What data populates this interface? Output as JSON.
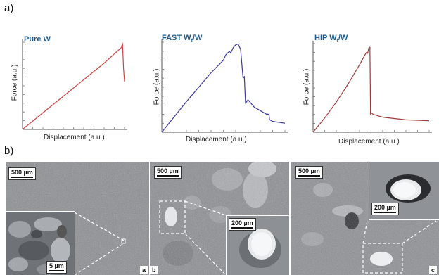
{
  "figure": {
    "panel_a_label": "a)",
    "panel_b_label": "b)"
  },
  "chart_data": [
    {
      "type": "line",
      "title": "Pure W",
      "xlabel": "Displacement (a.u.)",
      "ylabel": "Force (a.u.)",
      "xlim": [
        0,
        1
      ],
      "ylim": [
        0,
        1
      ],
      "x": [
        0,
        0.2,
        0.4,
        0.6,
        0.8,
        0.97,
        0.98,
        0.99,
        1.0
      ],
      "series": [
        {
          "values": [
            0,
            0.19,
            0.38,
            0.57,
            0.76,
            0.94,
            0.99,
            0.7,
            0.55
          ]
        }
      ]
    },
    {
      "type": "line",
      "title": "FAST W",
      "title_sub": "f",
      "title_suffix": "/W",
      "xlabel": "Displacement (a.u.)",
      "ylabel": "Force (a.u.)",
      "xlim": [
        0,
        1
      ],
      "ylim": [
        0,
        1
      ],
      "x": [
        0,
        0.1,
        0.2,
        0.3,
        0.4,
        0.5,
        0.52,
        0.55,
        0.56,
        0.58,
        0.6,
        0.62,
        0.64,
        0.66,
        0.67,
        0.68,
        0.7,
        0.75,
        0.8,
        0.85,
        0.87,
        0.875,
        0.9,
        1.0
      ],
      "series": [
        {
          "values": [
            0,
            0.17,
            0.34,
            0.5,
            0.66,
            0.8,
            0.86,
            0.9,
            0.88,
            0.94,
            0.97,
            0.98,
            0.92,
            0.6,
            0.62,
            0.32,
            0.36,
            0.28,
            0.24,
            0.2,
            0.2,
            0.14,
            0.12,
            0.1
          ]
        }
      ]
    },
    {
      "type": "line",
      "title": "HIP W",
      "title_sub": "f",
      "title_suffix": "/W",
      "xlabel": "Displacement (a.u.)",
      "ylabel": "Force (a.u.)",
      "xlim": [
        0,
        1
      ],
      "ylim": [
        0,
        1
      ],
      "x": [
        0,
        0.1,
        0.2,
        0.3,
        0.4,
        0.45,
        0.46,
        0.47,
        0.48,
        0.49,
        0.495,
        0.5,
        0.52,
        0.6,
        0.8,
        1.0
      ],
      "series": [
        {
          "values": [
            0,
            0.16,
            0.34,
            0.54,
            0.76,
            0.88,
            0.9,
            0.89,
            0.95,
            0.96,
            0.2,
            0.22,
            0.2,
            0.17,
            0.14,
            0.13
          ]
        }
      ]
    }
  ],
  "sem_images": [
    {
      "scale_main": "500 µm",
      "scale_inset": "5 µm",
      "tag": "a"
    },
    {
      "scale_main": "500 µm",
      "scale_inset": "200 µm",
      "tag": "b"
    },
    {
      "scale_main": "500 µm",
      "scale_inset": "200 µm",
      "tag": "c"
    }
  ],
  "colors": {
    "pure": "#d0433f",
    "fast": "#3a3a9a",
    "hip": "#9b3a3a",
    "title": "#1f5b8a"
  }
}
